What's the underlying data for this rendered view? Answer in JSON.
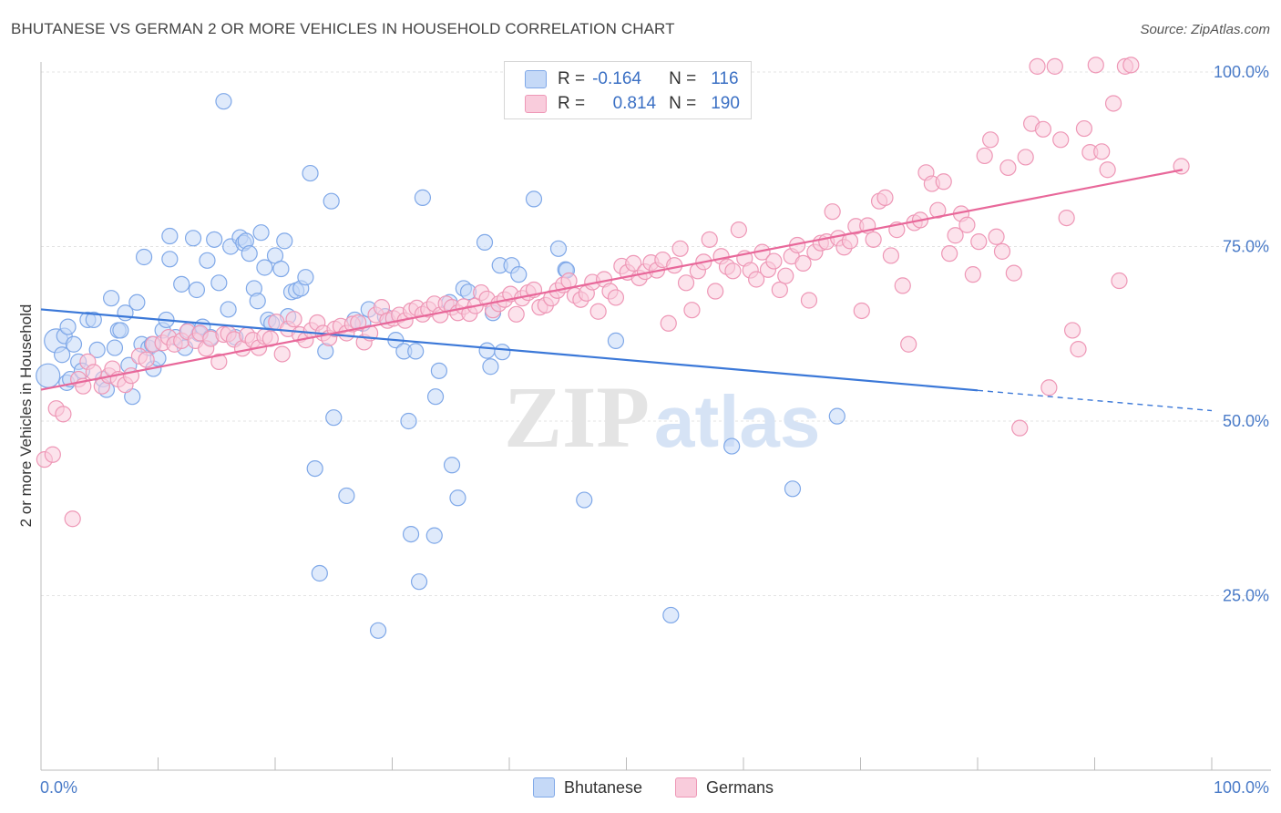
{
  "title": "BHUTANESE VS GERMAN 2 OR MORE VEHICLES IN HOUSEHOLD CORRELATION CHART",
  "source": "Source: ZipAtlas.com",
  "watermark": {
    "zip": "ZIP",
    "atlas": "atlas"
  },
  "legend": {
    "rows": [
      {
        "r_label": "R =",
        "r_value": "-0.164",
        "n_label": "N =",
        "n_value": "116",
        "color": "#8ab4f0",
        "fill": "#c5d9f7"
      },
      {
        "r_label": "R =",
        "r_value": "0.814",
        "n_label": "N =",
        "n_value": "190",
        "color": "#f09ab8",
        "fill": "#f9ccdc"
      }
    ]
  },
  "bottom_legend": [
    {
      "label": "Bhutanese",
      "fill": "#c5d9f7",
      "stroke": "#7fa8e8"
    },
    {
      "label": "Germans",
      "fill": "#f9ccdc",
      "stroke": "#ee97b6"
    }
  ],
  "chart_data": {
    "type": "scatter",
    "title": "BHUTANESE VS GERMAN 2 OR MORE VEHICLES IN HOUSEHOLD CORRELATION CHART",
    "xlabel": "",
    "ylabel": "2 or more Vehicles in Household",
    "xlim": [
      0,
      100
    ],
    "ylim": [
      0,
      103
    ],
    "x_tick_labels": [
      "0.0%",
      "100.0%"
    ],
    "y_tick_labels": [
      "25.0%",
      "50.0%",
      "75.0%",
      "100.0%"
    ],
    "y_ticks": [
      25,
      50,
      75,
      100
    ],
    "grid": true,
    "legend_position": "top-center",
    "series": [
      {
        "name": "Bhutanese",
        "color": "#3b78d8",
        "marker_fill": "#c5d9f7",
        "marker_stroke": "#7fa8e8",
        "trend": {
          "x": [
            0,
            80
          ],
          "y": [
            66,
            54.4
          ],
          "dashed_to": [
            100,
            51.5
          ]
        },
        "points": [
          [
            0.6,
            56.5
          ],
          [
            1.3,
            61.5
          ],
          [
            1.8,
            59.5
          ],
          [
            2,
            62.2
          ],
          [
            2.3,
            63.5
          ],
          [
            2.2,
            55.5
          ],
          [
            2.5,
            56
          ],
          [
            2.8,
            61
          ],
          [
            3.2,
            58.5
          ],
          [
            3.5,
            57.2
          ],
          [
            4,
            64.5
          ],
          [
            4.5,
            64.5
          ],
          [
            4.8,
            60.2
          ],
          [
            5.3,
            56
          ],
          [
            5.6,
            54.5
          ],
          [
            6,
            67.6
          ],
          [
            6.3,
            60.5
          ],
          [
            6.6,
            63
          ],
          [
            6.8,
            63
          ],
          [
            7.2,
            65.5
          ],
          [
            7.5,
            58
          ],
          [
            7.8,
            53.5
          ],
          [
            8.2,
            67
          ],
          [
            8.6,
            61
          ],
          [
            8.8,
            73.5
          ],
          [
            9.2,
            60.5
          ],
          [
            9.5,
            61
          ],
          [
            9.6,
            57.5
          ],
          [
            10,
            59
          ],
          [
            10.4,
            63
          ],
          [
            10.7,
            64.5
          ],
          [
            11,
            73.2
          ],
          [
            11,
            76.5
          ],
          [
            11.5,
            62
          ],
          [
            12,
            69.6
          ],
          [
            12.3,
            60.5
          ],
          [
            12.6,
            63
          ],
          [
            13,
            76.2
          ],
          [
            13.3,
            68.8
          ],
          [
            13.5,
            62.5
          ],
          [
            13.8,
            63.5
          ],
          [
            14.2,
            73
          ],
          [
            14.5,
            62
          ],
          [
            14.8,
            76
          ],
          [
            15.2,
            69.8
          ],
          [
            15.6,
            95.8
          ],
          [
            16,
            66
          ],
          [
            16.2,
            75
          ],
          [
            16.6,
            62
          ],
          [
            17,
            76.3
          ],
          [
            17.3,
            75.5
          ],
          [
            17.5,
            75.8
          ],
          [
            17.8,
            74
          ],
          [
            18.2,
            69
          ],
          [
            18.5,
            67.2
          ],
          [
            18.8,
            77
          ],
          [
            19.1,
            72
          ],
          [
            19.4,
            64.5
          ],
          [
            19.7,
            64
          ],
          [
            20,
            73.7
          ],
          [
            20.5,
            71.8
          ],
          [
            20.8,
            75.8
          ],
          [
            21.1,
            65
          ],
          [
            21.4,
            68.5
          ],
          [
            21.8,
            68.7
          ],
          [
            22.2,
            69
          ],
          [
            22.6,
            70.6
          ],
          [
            23,
            85.5
          ],
          [
            23.4,
            43.2
          ],
          [
            23.8,
            28.2
          ],
          [
            24.3,
            60
          ],
          [
            24.8,
            81.5
          ],
          [
            25,
            50.5
          ],
          [
            26.1,
            39.3
          ],
          [
            26.8,
            64.5
          ],
          [
            27.5,
            64
          ],
          [
            28,
            66
          ],
          [
            28.8,
            20
          ],
          [
            29.4,
            65
          ],
          [
            30.3,
            61.6
          ],
          [
            31,
            60
          ],
          [
            31.4,
            50
          ],
          [
            31.6,
            33.8
          ],
          [
            32,
            60
          ],
          [
            32.3,
            27
          ],
          [
            32.6,
            82
          ],
          [
            33.7,
            53.5
          ],
          [
            33.6,
            33.6
          ],
          [
            34,
            57.2
          ],
          [
            34.9,
            67
          ],
          [
            35.1,
            43.7
          ],
          [
            35.6,
            39
          ],
          [
            36.1,
            69
          ],
          [
            36.5,
            68.5
          ],
          [
            37.9,
            75.6
          ],
          [
            38.1,
            60.1
          ],
          [
            38.4,
            57.8
          ],
          [
            38.6,
            65.5
          ],
          [
            39.2,
            72.3
          ],
          [
            39.4,
            59.9
          ],
          [
            40.2,
            72.3
          ],
          [
            40.8,
            71
          ],
          [
            42.1,
            81.8
          ],
          [
            44.2,
            74.7
          ],
          [
            44.8,
            71.7
          ],
          [
            44.9,
            71.6
          ],
          [
            46.4,
            38.7
          ],
          [
            49.1,
            61.5
          ],
          [
            53.8,
            22.2
          ],
          [
            59,
            46.4
          ],
          [
            64.2,
            40.3
          ],
          [
            68,
            50.7
          ]
        ]
      },
      {
        "name": "Germans",
        "color": "#e8689a",
        "marker_fill": "#f9ccdc",
        "marker_stroke": "#ee97b6",
        "trend": {
          "x": [
            0,
            97.5
          ],
          "y": [
            54.5,
            86
          ]
        },
        "points": [
          [
            0.3,
            44.5
          ],
          [
            1,
            45.2
          ],
          [
            1.3,
            51.8
          ],
          [
            1.9,
            51
          ],
          [
            2.7,
            36
          ],
          [
            3.2,
            56
          ],
          [
            3.6,
            55
          ],
          [
            4,
            58.5
          ],
          [
            4.5,
            57
          ],
          [
            5.2,
            55
          ],
          [
            5.8,
            56.5
          ],
          [
            6.1,
            57.5
          ],
          [
            6.6,
            56
          ],
          [
            7.2,
            55.2
          ],
          [
            7.7,
            56.5
          ],
          [
            8.4,
            59.3
          ],
          [
            9,
            58.8
          ],
          [
            9.6,
            61
          ],
          [
            10.4,
            61.2
          ],
          [
            10.9,
            62
          ],
          [
            11.4,
            61
          ],
          [
            12,
            61.5
          ],
          [
            12.5,
            62.8
          ],
          [
            13.2,
            61.5
          ],
          [
            13.6,
            62.6
          ],
          [
            14.1,
            60.4
          ],
          [
            14.5,
            61.8
          ],
          [
            15.2,
            58.5
          ],
          [
            15.6,
            62.4
          ],
          [
            16,
            62.5
          ],
          [
            16.5,
            61.7
          ],
          [
            17.2,
            60.4
          ],
          [
            17.6,
            62.3
          ],
          [
            18.1,
            61.6
          ],
          [
            18.6,
            60.5
          ],
          [
            19.1,
            62.1
          ],
          [
            19.6,
            61.8
          ],
          [
            20.1,
            64.2
          ],
          [
            20.6,
            59.6
          ],
          [
            21.1,
            63.2
          ],
          [
            21.6,
            64.6
          ],
          [
            22.1,
            62.4
          ],
          [
            22.6,
            61.6
          ],
          [
            23.1,
            63
          ],
          [
            23.6,
            64.1
          ],
          [
            24.1,
            62.6
          ],
          [
            24.6,
            61.9
          ],
          [
            25.1,
            63.2
          ],
          [
            25.6,
            63.6
          ],
          [
            26.1,
            62.6
          ],
          [
            26.6,
            63.9
          ],
          [
            27.1,
            64.1
          ],
          [
            27.6,
            61.3
          ],
          [
            28.1,
            62.6
          ],
          [
            28.6,
            65.2
          ],
          [
            29.1,
            66.3
          ],
          [
            29.6,
            64.4
          ],
          [
            30.1,
            64.7
          ],
          [
            30.6,
            65.2
          ],
          [
            31.1,
            64.4
          ],
          [
            31.6,
            65.8
          ],
          [
            32.1,
            66.2
          ],
          [
            32.6,
            65.3
          ],
          [
            33.1,
            66
          ],
          [
            33.6,
            66.8
          ],
          [
            34.1,
            65.2
          ],
          [
            34.6,
            66.8
          ],
          [
            35.1,
            66.3
          ],
          [
            35.6,
            65.5
          ],
          [
            36.1,
            66.4
          ],
          [
            36.6,
            65.4
          ],
          [
            37.1,
            66.5
          ],
          [
            37.6,
            68.4
          ],
          [
            38.1,
            67.5
          ],
          [
            38.6,
            65.9
          ],
          [
            39.1,
            66.8
          ],
          [
            39.6,
            67.4
          ],
          [
            40.1,
            68.2
          ],
          [
            40.6,
            65.3
          ],
          [
            41.1,
            67.6
          ],
          [
            41.6,
            68.4
          ],
          [
            42.1,
            68.8
          ],
          [
            42.6,
            66.3
          ],
          [
            43.1,
            66.6
          ],
          [
            43.6,
            67.6
          ],
          [
            44.1,
            68.7
          ],
          [
            44.6,
            69.5
          ],
          [
            45.1,
            70.1
          ],
          [
            45.6,
            68
          ],
          [
            46.1,
            67.4
          ],
          [
            46.6,
            68.3
          ],
          [
            47.1,
            69.9
          ],
          [
            47.6,
            65.7
          ],
          [
            48.1,
            70.3
          ],
          [
            48.6,
            68.6
          ],
          [
            49.1,
            67.7
          ],
          [
            49.6,
            72.2
          ],
          [
            50.1,
            71.3
          ],
          [
            50.6,
            72.6
          ],
          [
            51.1,
            70.5
          ],
          [
            51.6,
            71.4
          ],
          [
            52.1,
            72.7
          ],
          [
            52.6,
            71.6
          ],
          [
            53.1,
            73.1
          ],
          [
            53.6,
            64
          ],
          [
            54.1,
            72.3
          ],
          [
            54.6,
            74.7
          ],
          [
            55.1,
            69.8
          ],
          [
            55.6,
            65.9
          ],
          [
            56.1,
            71.5
          ],
          [
            56.6,
            72.8
          ],
          [
            57.1,
            76
          ],
          [
            57.6,
            68.6
          ],
          [
            58.1,
            73.6
          ],
          [
            58.6,
            72.1
          ],
          [
            59.1,
            71.5
          ],
          [
            59.6,
            77.4
          ],
          [
            60.1,
            73.3
          ],
          [
            60.6,
            71.6
          ],
          [
            61.1,
            70.3
          ],
          [
            61.6,
            74.2
          ],
          [
            62.1,
            71.7
          ],
          [
            62.6,
            72.9
          ],
          [
            63.1,
            68.8
          ],
          [
            63.6,
            70.8
          ],
          [
            64.1,
            73.6
          ],
          [
            64.6,
            75.2
          ],
          [
            65.1,
            72.6
          ],
          [
            65.6,
            67.3
          ],
          [
            66.1,
            74.2
          ],
          [
            66.6,
            75.5
          ],
          [
            67.1,
            75.7
          ],
          [
            67.6,
            80
          ],
          [
            68.1,
            76.2
          ],
          [
            68.6,
            74.9
          ],
          [
            69.1,
            75.8
          ],
          [
            69.6,
            77.9
          ],
          [
            70.1,
            65.8
          ],
          [
            70.6,
            78
          ],
          [
            71.1,
            76
          ],
          [
            71.6,
            81.5
          ],
          [
            72.1,
            82
          ],
          [
            72.6,
            73.7
          ],
          [
            73.1,
            77.4
          ],
          [
            73.6,
            69.4
          ],
          [
            74.1,
            61
          ],
          [
            74.6,
            78.4
          ],
          [
            75.1,
            78.8
          ],
          [
            75.6,
            85.6
          ],
          [
            76.1,
            84
          ],
          [
            76.6,
            80.2
          ],
          [
            77.1,
            84.3
          ],
          [
            77.6,
            74
          ],
          [
            78.1,
            76.6
          ],
          [
            78.6,
            79.7
          ],
          [
            79.1,
            78.1
          ],
          [
            79.6,
            71
          ],
          [
            80.1,
            75.7
          ],
          [
            80.6,
            88
          ],
          [
            81.1,
            90.3
          ],
          [
            81.6,
            76.4
          ],
          [
            82.1,
            74.3
          ],
          [
            82.6,
            86.3
          ],
          [
            83.1,
            71.2
          ],
          [
            83.6,
            49
          ],
          [
            84.1,
            87.8
          ],
          [
            84.6,
            92.6
          ],
          [
            85.1,
            100.8
          ],
          [
            85.6,
            91.8
          ],
          [
            86.1,
            54.8
          ],
          [
            86.6,
            100.8
          ],
          [
            87.1,
            90.3
          ],
          [
            87.6,
            79.1
          ],
          [
            88.1,
            63
          ],
          [
            88.6,
            60.3
          ],
          [
            89.1,
            91.9
          ],
          [
            89.6,
            88.5
          ],
          [
            90.1,
            101
          ],
          [
            90.6,
            88.6
          ],
          [
            91.1,
            86
          ],
          [
            91.6,
            95.5
          ],
          [
            92.1,
            70.1
          ],
          [
            92.6,
            100.8
          ],
          [
            93.1,
            101
          ],
          [
            97.4,
            86.5
          ]
        ]
      }
    ]
  }
}
